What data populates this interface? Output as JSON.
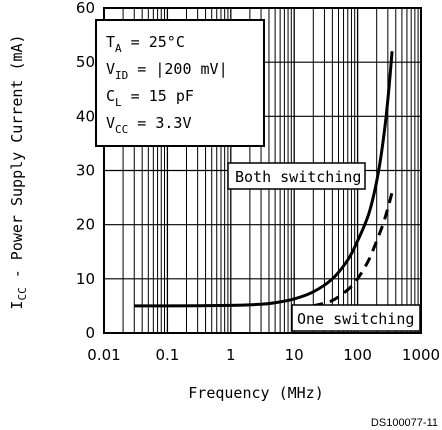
{
  "chart_data": {
    "type": "line",
    "title": "",
    "xlabel": "Frequency (MHz)",
    "ylabel_main": "I",
    "ylabel_sub": "CC",
    "ylabel_rest": " - Power Supply Current (mA)",
    "x_scale": "log",
    "xlim": [
      0.01,
      1000
    ],
    "ylim": [
      0,
      60
    ],
    "grid": true,
    "x_tick_labels": [
      {
        "value": 0.01,
        "label": "0.01"
      },
      {
        "value": 0.1,
        "label": "0.1"
      },
      {
        "value": 1,
        "label": "1"
      },
      {
        "value": 10,
        "label": "10"
      },
      {
        "value": 100,
        "label": "100"
      },
      {
        "value": 1000,
        "label": "1000"
      }
    ],
    "y_tick_labels": [
      {
        "value": 0,
        "label": "0"
      },
      {
        "value": 10,
        "label": "10"
      },
      {
        "value": 20,
        "label": "20"
      },
      {
        "value": 30,
        "label": "30"
      },
      {
        "value": 40,
        "label": "40"
      },
      {
        "value": 50,
        "label": "50"
      },
      {
        "value": 60,
        "label": "60"
      }
    ],
    "series": [
      {
        "name": "Both switching",
        "style": "solid",
        "color": "#000000",
        "points": [
          [
            0.03,
            5
          ],
          [
            0.1,
            5
          ],
          [
            1,
            5.1
          ],
          [
            3,
            5.3
          ],
          [
            5,
            5.6
          ],
          [
            10,
            6.3
          ],
          [
            20,
            7.6
          ],
          [
            40,
            10
          ],
          [
            70,
            13.5
          ],
          [
            100,
            17
          ],
          [
            150,
            22
          ],
          [
            200,
            28
          ],
          [
            250,
            35
          ],
          [
            300,
            43
          ],
          [
            350,
            52
          ]
        ]
      },
      {
        "name": "One switching",
        "style": "dashed",
        "color": "#000000",
        "points": [
          [
            20,
            5
          ],
          [
            40,
            6
          ],
          [
            70,
            8
          ],
          [
            100,
            10
          ],
          [
            150,
            13.5
          ],
          [
            200,
            17
          ],
          [
            250,
            20
          ],
          [
            300,
            23
          ],
          [
            350,
            26
          ]
        ]
      }
    ],
    "conditions": [
      {
        "main": "T",
        "sub": "A",
        "rest": " = 25°C"
      },
      {
        "main": "V",
        "sub": "ID",
        "rest": " = |200 mV|"
      },
      {
        "main": "C",
        "sub": "L",
        "rest": " = 15 pF"
      },
      {
        "main": "V",
        "sub": "CC",
        "rest": " = 3.3V"
      }
    ],
    "annotations": {
      "both": "Both switching",
      "one": "One switching"
    },
    "credit": "DS100077-11"
  }
}
